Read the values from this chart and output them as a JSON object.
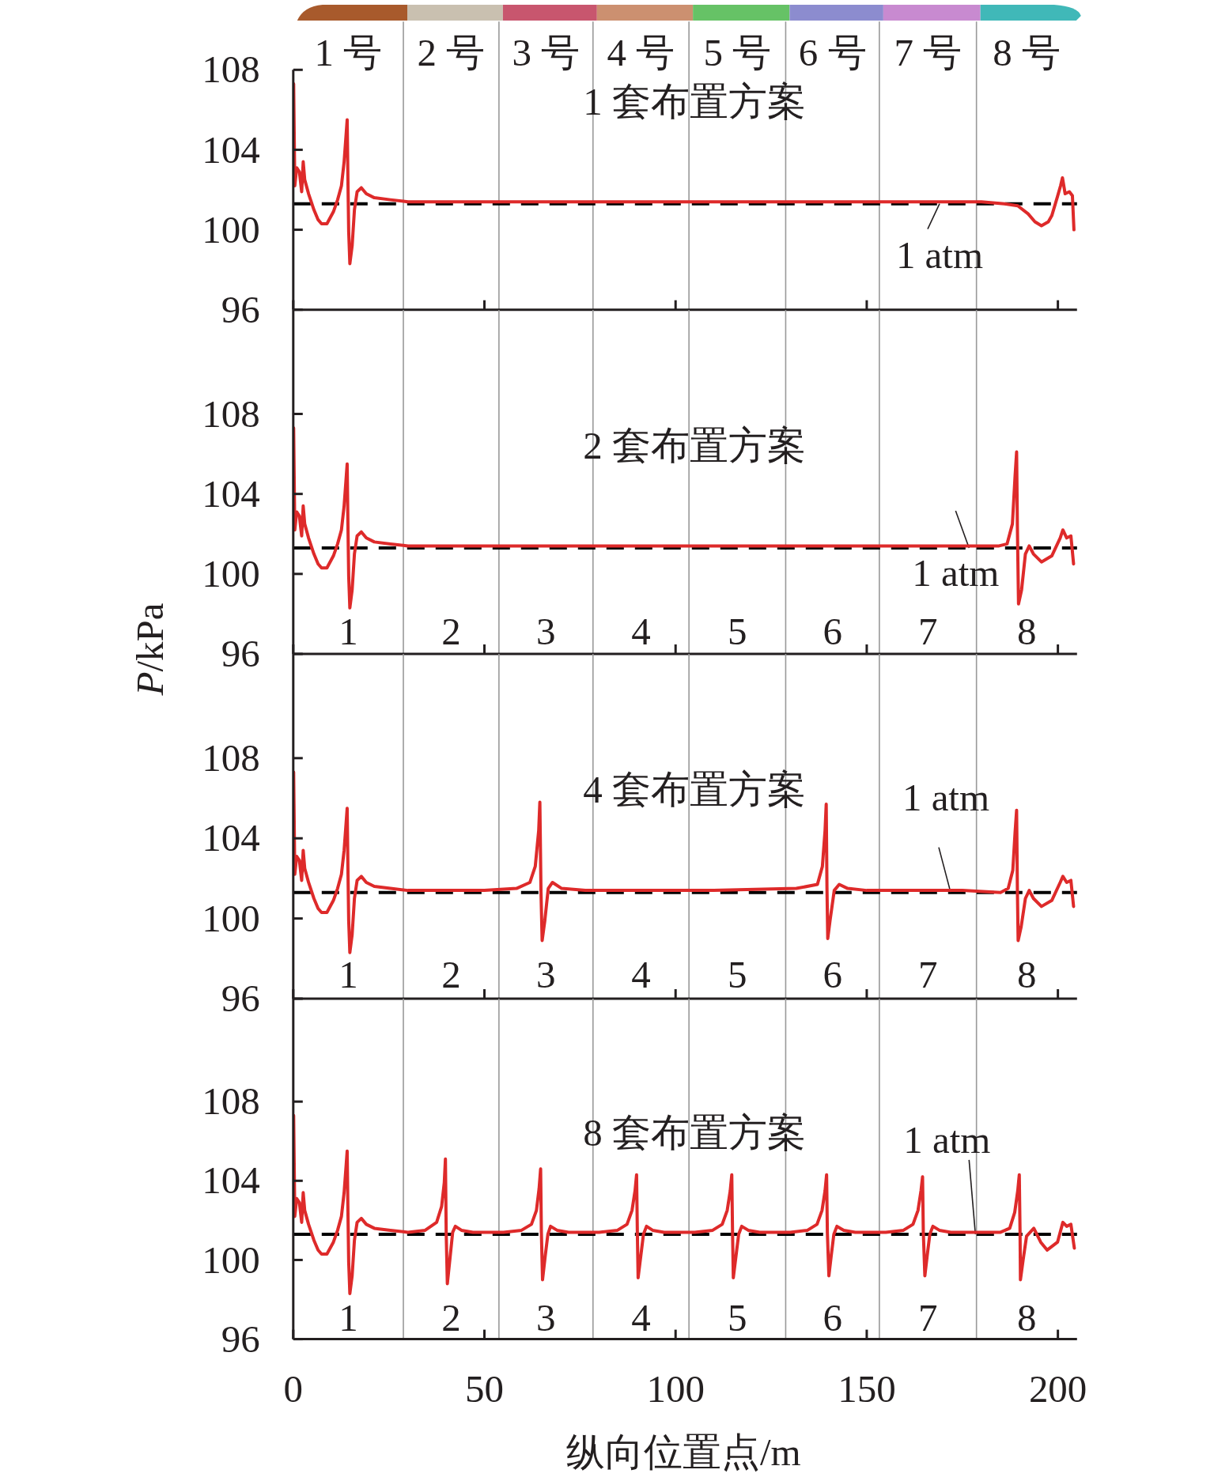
{
  "chart_data": [
    {
      "type": "line",
      "title": "1 套布置方案",
      "color": "#de2a2a",
      "x": [
        0.1,
        0.4,
        0.9,
        1.6,
        2.2,
        2.6,
        3.0,
        4.0,
        5.4,
        6.5,
        7.4,
        8.8,
        10.5,
        11.6,
        12.6,
        13.3,
        13.8,
        14.1,
        14.3,
        14.5,
        14.8,
        15.4,
        16.0,
        16.7,
        17.8,
        19.1,
        21.2,
        25.4,
        30,
        60,
        100,
        140,
        170,
        180,
        186,
        189.5,
        192.2,
        194,
        195.7,
        197.5,
        198.4,
        199.8,
        200.7,
        201.2,
        201.9,
        203.0,
        203.8,
        204.2
      ],
      "values": [
        107.3,
        102.2,
        103.1,
        102.9,
        101.9,
        103.4,
        102.5,
        101.8,
        101.0,
        100.5,
        100.3,
        100.3,
        100.9,
        101.5,
        102.2,
        103.4,
        104.7,
        105.5,
        102.5,
        99.9,
        98.3,
        99.2,
        101.0,
        101.9,
        102.1,
        101.8,
        101.6,
        101.5,
        101.4,
        101.4,
        101.4,
        101.4,
        101.4,
        101.4,
        101.3,
        101.2,
        100.8,
        100.4,
        100.2,
        100.4,
        100.7,
        101.6,
        102.2,
        102.6,
        101.8,
        101.9,
        101.7,
        100.0
      ],
      "xlim": [
        0,
        205
      ],
      "xticks": [
        0,
        50,
        100,
        150,
        200
      ],
      "ylim": [
        96,
        108
      ],
      "yticks": [
        96,
        100,
        104,
        108
      ],
      "ref_lines": [
        {
          "axis": "x",
          "value": 28.8,
          "color": "#999999"
        },
        {
          "axis": "x",
          "value": 53.8,
          "color": "#999999"
        },
        {
          "axis": "x",
          "value": 78.4,
          "color": "#999999"
        },
        {
          "axis": "x",
          "value": 103.5,
          "color": "#999999"
        },
        {
          "axis": "x",
          "value": 128.8,
          "color": "#999999"
        },
        {
          "axis": "x",
          "value": 153.3,
          "color": "#999999"
        },
        {
          "axis": "x",
          "value": 178.7,
          "color": "#999999"
        },
        {
          "axis": "y",
          "value": 101.3,
          "label": "1 atm",
          "color": "#000000",
          "line_style": "dashed"
        }
      ],
      "annotations": [
        "1 号",
        "2 号",
        "3 号",
        "4 号",
        "5 号",
        "6 号",
        "7 号",
        "8 号"
      ],
      "tick_labels": "y"
    },
    {
      "type": "line",
      "title": "2 套布置方案",
      "ylabel": "P/kPa",
      "color": "#de2a2a",
      "x": [
        0.1,
        0.4,
        0.9,
        1.6,
        2.2,
        2.6,
        3.0,
        4.0,
        5.4,
        6.5,
        7.4,
        8.8,
        10.5,
        11.6,
        12.6,
        13.3,
        13.8,
        14.1,
        14.3,
        14.5,
        14.8,
        15.4,
        16.0,
        16.7,
        17.8,
        19.1,
        21.2,
        25.4,
        30,
        60,
        100,
        140,
        175,
        184.6,
        186.7,
        188.1,
        188.8,
        189.2,
        189.4,
        189.7,
        190.5,
        191.5,
        192.5,
        193.6,
        195.7,
        198.4,
        200.6,
        201.3,
        202.3,
        203.4,
        204.1
      ],
      "values": [
        107.3,
        102.2,
        103.1,
        102.9,
        101.9,
        103.4,
        102.5,
        101.8,
        101.0,
        100.5,
        100.3,
        100.3,
        100.9,
        101.5,
        102.2,
        103.4,
        104.7,
        105.5,
        102.5,
        99.9,
        98.3,
        99.2,
        101.0,
        101.9,
        102.1,
        101.8,
        101.6,
        101.5,
        101.4,
        101.4,
        101.4,
        101.4,
        101.4,
        101.4,
        101.5,
        102.5,
        104.9,
        106.1,
        102.4,
        98.5,
        99.2,
        101.0,
        101.4,
        101.0,
        100.6,
        100.9,
        101.8,
        102.2,
        101.8,
        101.9,
        100.5
      ],
      "xlim": [
        0,
        205
      ],
      "xticks": [
        0,
        50,
        100,
        150,
        200
      ],
      "ylim": [
        96,
        113.2
      ],
      "yticks": [
        96,
        100,
        104,
        108
      ],
      "ref_lines": [
        {
          "axis": "x",
          "value": 28.8,
          "color": "#999999"
        },
        {
          "axis": "x",
          "value": 53.8,
          "color": "#999999"
        },
        {
          "axis": "x",
          "value": 78.4,
          "color": "#999999"
        },
        {
          "axis": "x",
          "value": 103.5,
          "color": "#999999"
        },
        {
          "axis": "x",
          "value": 128.8,
          "color": "#999999"
        },
        {
          "axis": "x",
          "value": 153.3,
          "color": "#999999"
        },
        {
          "axis": "x",
          "value": 178.7,
          "color": "#999999"
        },
        {
          "axis": "y",
          "value": 101.3,
          "label": "1 atm",
          "color": "#000000",
          "line_style": "dashed"
        }
      ],
      "annotations": [
        "1",
        "2",
        "3",
        "4",
        "5",
        "6",
        "7",
        "8"
      ],
      "tick_labels": "y"
    },
    {
      "type": "line",
      "title": "4 套布置方案",
      "color": "#de2a2a",
      "x": [
        0.1,
        0.4,
        0.9,
        1.6,
        2.2,
        2.6,
        3.0,
        4.0,
        5.4,
        6.5,
        7.4,
        8.8,
        10.5,
        11.6,
        12.6,
        13.3,
        13.8,
        14.1,
        14.3,
        14.5,
        14.8,
        15.4,
        16.0,
        16.7,
        17.8,
        19.1,
        21.2,
        25.4,
        30,
        50,
        58.4,
        61.9,
        63.3,
        64.2,
        64.5,
        64.8,
        65.1,
        65.8,
        66.7,
        67.8,
        70.2,
        76.4,
        110,
        131.6,
        137.1,
        138.4,
        139.1,
        139.4,
        139.6,
        139.8,
        140.4,
        141.5,
        142.8,
        145,
        150,
        175,
        185,
        187,
        188.2,
        188.8,
        189.2,
        189.4,
        189.6,
        190.4,
        191.5,
        192.5,
        193.6,
        195.7,
        198.4,
        200.6,
        201.3,
        202.3,
        203.4,
        204.1
      ],
      "values": [
        107.3,
        102.2,
        103.1,
        102.9,
        101.9,
        103.4,
        102.5,
        101.8,
        101.0,
        100.5,
        100.3,
        100.3,
        100.9,
        101.5,
        102.2,
        103.4,
        104.7,
        105.5,
        102.5,
        99.9,
        98.3,
        99.2,
        101.0,
        101.9,
        102.1,
        101.8,
        101.6,
        101.5,
        101.4,
        101.4,
        101.5,
        101.8,
        102.6,
        104.4,
        105.8,
        101.3,
        98.9,
        99.9,
        101.5,
        101.8,
        101.5,
        101.4,
        101.4,
        101.5,
        101.7,
        102.6,
        104.4,
        105.7,
        101.5,
        99.0,
        99.9,
        101.4,
        101.7,
        101.5,
        101.4,
        101.4,
        101.3,
        101.5,
        102.4,
        104.3,
        105.4,
        101.5,
        98.9,
        99.6,
        101.0,
        101.4,
        101.0,
        100.6,
        100.9,
        101.8,
        102.1,
        101.8,
        101.9,
        100.6
      ],
      "xlim": [
        0,
        205
      ],
      "xticks": [
        0,
        50,
        100,
        150,
        200
      ],
      "ylim": [
        96,
        113.2
      ],
      "yticks": [
        96,
        100,
        104,
        108
      ],
      "ref_lines": [
        {
          "axis": "x",
          "value": 28.8,
          "color": "#999999"
        },
        {
          "axis": "x",
          "value": 53.8,
          "color": "#999999"
        },
        {
          "axis": "x",
          "value": 78.4,
          "color": "#999999"
        },
        {
          "axis": "x",
          "value": 103.5,
          "color": "#999999"
        },
        {
          "axis": "x",
          "value": 128.8,
          "color": "#999999"
        },
        {
          "axis": "x",
          "value": 153.3,
          "color": "#999999"
        },
        {
          "axis": "x",
          "value": 178.7,
          "color": "#999999"
        },
        {
          "axis": "y",
          "value": 101.3,
          "label": "1 atm",
          "color": "#000000",
          "line_style": "dashed"
        }
      ],
      "annotations": [
        "1",
        "2",
        "3",
        "4",
        "5",
        "6",
        "7",
        "8"
      ],
      "tick_labels": "y"
    },
    {
      "type": "line",
      "title": "8 套布置方案",
      "xlabel": "纵向位置点/m",
      "color": "#de2a2a",
      "x": [
        0.1,
        0.4,
        0.9,
        1.6,
        2.2,
        2.6,
        3.0,
        4.0,
        5.4,
        6.5,
        7.4,
        8.8,
        10.5,
        11.6,
        12.6,
        13.3,
        13.8,
        14.1,
        14.3,
        14.5,
        14.8,
        15.4,
        16.0,
        16.7,
        17.8,
        19.1,
        21.2,
        25.4,
        30,
        34.5,
        37.5,
        38.8,
        39.5,
        39.8,
        40.0,
        40.3,
        41.0,
        41.7,
        42.4,
        44,
        47,
        55,
        59.7,
        62.3,
        63.6,
        64.3,
        64.7,
        64.9,
        65.2,
        65.9,
        66.6,
        67.3,
        69,
        72,
        80,
        84.8,
        87.3,
        88.6,
        89.4,
        89.8,
        90.0,
        90.2,
        90.9,
        91.6,
        92.4,
        94,
        97,
        105,
        109.7,
        112.2,
        113.5,
        114.3,
        114.7,
        114.9,
        115.1,
        115.8,
        116.5,
        117.3,
        119,
        122,
        130,
        134.5,
        137,
        138.3,
        139.1,
        139.5,
        139.7,
        140.1,
        140.7,
        141.4,
        142.2,
        144,
        147,
        155,
        159.6,
        162.1,
        163.4,
        164.2,
        164.6,
        164.8,
        165.2,
        165.8,
        166.5,
        167.3,
        169,
        172,
        180,
        185,
        187.4,
        188.7,
        189.5,
        189.9,
        190.1,
        190.2,
        190.9,
        191.8,
        193.7,
        195.5,
        197.2,
        199.9,
        201.3,
        202.3,
        203.4,
        204.3
      ],
      "values": [
        107.3,
        102.2,
        103.1,
        102.9,
        101.9,
        103.4,
        102.5,
        101.8,
        101.0,
        100.5,
        100.3,
        100.3,
        100.9,
        101.5,
        102.2,
        103.4,
        104.7,
        105.5,
        102.5,
        99.9,
        98.3,
        99.2,
        101.0,
        101.9,
        102.1,
        101.8,
        101.6,
        101.5,
        101.4,
        101.5,
        101.9,
        102.7,
        103.9,
        105.1,
        101.4,
        98.8,
        100.1,
        101.4,
        101.7,
        101.5,
        101.4,
        101.4,
        101.5,
        101.8,
        102.5,
        103.6,
        104.6,
        101.4,
        99.0,
        100.2,
        101.3,
        101.7,
        101.5,
        101.4,
        101.4,
        101.5,
        101.8,
        102.5,
        103.5,
        104.3,
        101.4,
        99.1,
        100.2,
        101.3,
        101.7,
        101.5,
        101.4,
        101.4,
        101.5,
        101.8,
        102.5,
        103.5,
        104.3,
        101.4,
        99.1,
        100.2,
        101.3,
        101.7,
        101.5,
        101.4,
        101.4,
        101.5,
        101.8,
        102.5,
        103.5,
        104.3,
        101.4,
        99.2,
        100.2,
        101.3,
        101.7,
        101.5,
        101.4,
        101.4,
        101.5,
        101.8,
        102.5,
        103.5,
        104.2,
        101.4,
        99.2,
        100.2,
        101.3,
        101.7,
        101.5,
        101.4,
        101.4,
        101.4,
        101.6,
        102.4,
        103.5,
        104.3,
        101.4,
        99.0,
        100.0,
        101.2,
        101.6,
        100.9,
        100.5,
        100.9,
        101.9,
        101.7,
        101.8,
        100.6
      ],
      "xlim": [
        0,
        205
      ],
      "xticks": [
        0,
        50,
        100,
        150,
        200
      ],
      "ylim": [
        96,
        113.2
      ],
      "yticks": [
        96,
        100,
        104,
        108
      ],
      "ref_lines": [
        {
          "axis": "x",
          "value": 28.8,
          "color": "#999999"
        },
        {
          "axis": "x",
          "value": 53.8,
          "color": "#999999"
        },
        {
          "axis": "x",
          "value": 78.4,
          "color": "#999999"
        },
        {
          "axis": "x",
          "value": 103.5,
          "color": "#999999"
        },
        {
          "axis": "x",
          "value": 128.8,
          "color": "#999999"
        },
        {
          "axis": "x",
          "value": 153.3,
          "color": "#999999"
        },
        {
          "axis": "x",
          "value": 178.7,
          "color": "#999999"
        },
        {
          "axis": "y",
          "value": 101.3,
          "label": "1 atm",
          "color": "#000000",
          "line_style": "dashed"
        }
      ],
      "annotations": [
        "1",
        "2",
        "3",
        "4",
        "5",
        "6",
        "7",
        "8"
      ]
    }
  ]
}
